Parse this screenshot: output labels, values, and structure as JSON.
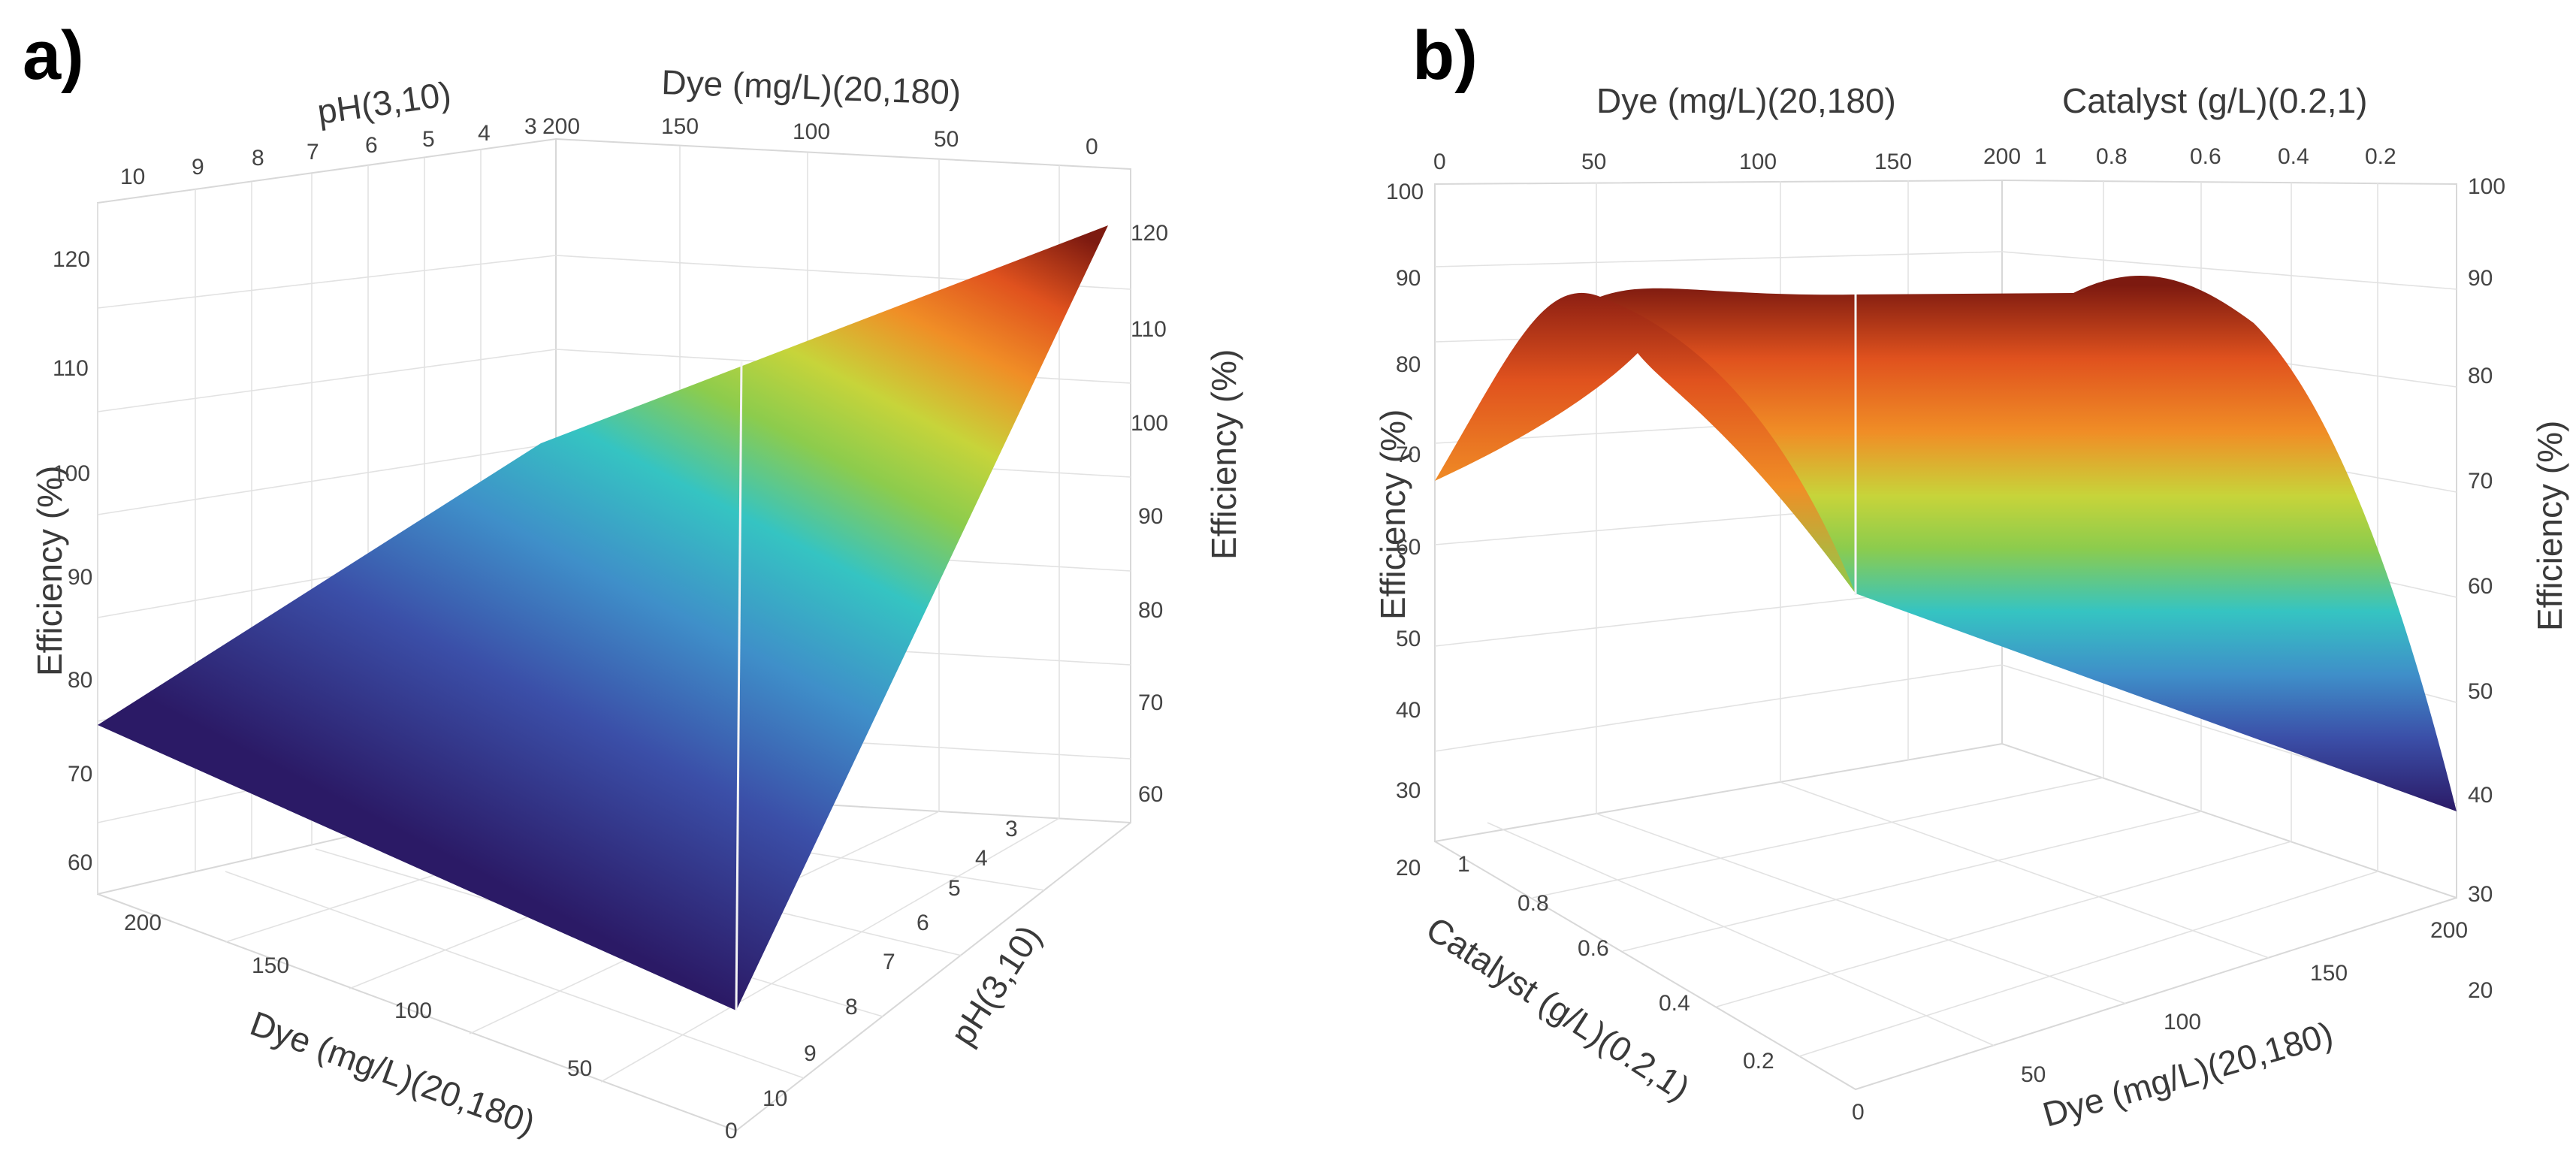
{
  "figure": {
    "panel_a_label": "a)",
    "panel_b_label": "b)"
  },
  "chart_data": [
    {
      "panel": "a)",
      "type": "surface3d",
      "title": "",
      "x_axis": {
        "label": "Dye (mg/L)(20,180)",
        "range": [
          0,
          200
        ],
        "ticks": [
          "200",
          "150",
          "100",
          "50",
          "0"
        ]
      },
      "y_axis": {
        "label": "pH(3,10)",
        "range": [
          3,
          10
        ],
        "ticks": [
          "3",
          "4",
          "5",
          "6",
          "7",
          "8",
          "9",
          "10"
        ]
      },
      "z_axis": {
        "label": "Efficiency (%)",
        "range": [
          55,
          122
        ],
        "ticks_left": [
          "60",
          "70",
          "80",
          "90",
          "100",
          "110",
          "120"
        ],
        "ticks_right": [
          "60",
          "70",
          "80",
          "90",
          "100",
          "110",
          "120"
        ]
      },
      "surface_corners": [
        {
          "dye": 20,
          "pH": 10,
          "efficiency": 59
        },
        {
          "dye": 180,
          "pH": 10,
          "efficiency": 73
        },
        {
          "dye": 180,
          "pH": 3,
          "efficiency": 102
        },
        {
          "dye": 20,
          "pH": 3,
          "efficiency": 120
        }
      ],
      "colormap": [
        "#2b1a66",
        "#3b4fa8",
        "#3f8fc9",
        "#35c4c2",
        "#8ccc4d",
        "#c7d43a",
        "#f08e26",
        "#e0521e",
        "#7d1a10"
      ]
    },
    {
      "panel": "b)",
      "type": "surface3d",
      "title": "",
      "x_axis": {
        "label": "Dye (mg/L)(20,180)",
        "range": [
          0,
          200
        ],
        "ticks": [
          "0",
          "50",
          "100",
          "150",
          "200"
        ]
      },
      "y_axis": {
        "label": "Catalyst (g/L)(0.2,1)",
        "range": [
          0.2,
          1
        ],
        "ticks": [
          "0",
          "0.2",
          "0.4",
          "0.6",
          "0.8",
          "1"
        ],
        "ticks_top": [
          "1",
          "0.8",
          "0.6",
          "0.4",
          "0.2"
        ]
      },
      "z_axis": {
        "label": "Efficiency (%)",
        "range": [
          20,
          100
        ],
        "ticks_left": [
          "20",
          "30",
          "40",
          "50",
          "60",
          "70",
          "80",
          "90",
          "100"
        ],
        "ticks_right": [
          "20",
          "30",
          "40",
          "50",
          "60",
          "70",
          "80",
          "90",
          "100"
        ]
      },
      "surface_corners": [
        {
          "dye": 20,
          "catalyst": 1,
          "efficiency": 68
        },
        {
          "dye": 180,
          "catalyst": 1,
          "efficiency": 87
        },
        {
          "dye": 180,
          "catalyst": 0.2,
          "efficiency": 31
        },
        {
          "dye": 20,
          "catalyst": 0.2,
          "efficiency": 50
        }
      ],
      "colormap": [
        "#2b1a66",
        "#3b4fa8",
        "#3f8fc9",
        "#35c4c2",
        "#8ccc4d",
        "#c7d43a",
        "#f08e26",
        "#e0521e",
        "#7d1a10"
      ]
    }
  ]
}
